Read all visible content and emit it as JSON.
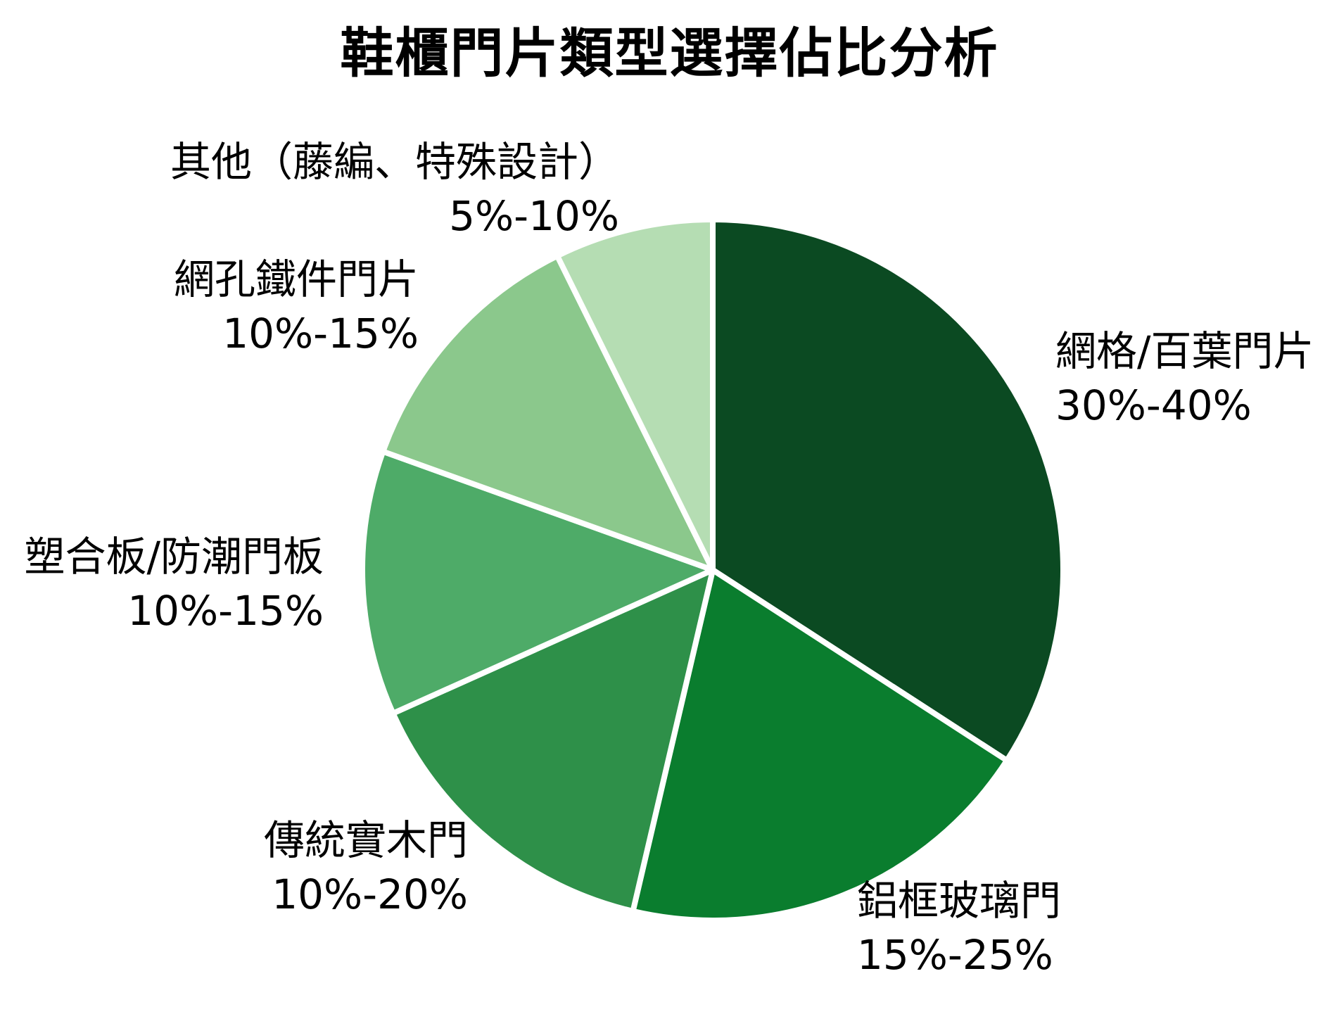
{
  "chart_data": {
    "type": "pie",
    "title": "鞋櫃門片類型選擇佔比分析",
    "start_angle_deg": 0,
    "direction": "clockwise",
    "legend": "none",
    "labels_position": "outside",
    "background_color": "#ffffff",
    "wedge_edge_color": "#ffffff",
    "slices": [
      {
        "label": "網格/百葉門片",
        "range": "30%-40%",
        "mid_percent": 35,
        "color": "#0B4A22"
      },
      {
        "label": "鋁框玻璃門",
        "range": "15%-25%",
        "mid_percent": 20,
        "color": "#0A7D2E"
      },
      {
        "label": "傳統實木門",
        "range": "10%-20%",
        "mid_percent": 15,
        "color": "#2E9049"
      },
      {
        "label": "塑合板/防潮門板",
        "range": "10%-15%",
        "mid_percent": 12.5,
        "color": "#4EAB68"
      },
      {
        "label": "網孔鐵件門片",
        "range": "10%-15%",
        "mid_percent": 12.5,
        "color": "#8BC88C"
      },
      {
        "label": "其他（藤編、特殊設計）",
        "range": "5%-10%",
        "mid_percent": 7.5,
        "color": "#B5DDB3"
      }
    ]
  }
}
